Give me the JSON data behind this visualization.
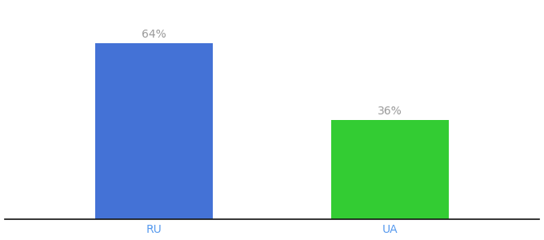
{
  "categories": [
    "RU",
    "UA"
  ],
  "values": [
    64,
    36
  ],
  "bar_colors": [
    "#4472D6",
    "#33CC33"
  ],
  "label_color": "#999999",
  "labels": [
    "64%",
    "36%"
  ],
  "background_color": "#ffffff",
  "bar_positions": [
    0.28,
    0.72
  ],
  "bar_width": 0.22,
  "xlim": [
    0.0,
    1.0
  ],
  "ylim": [
    0,
    78
  ],
  "label_fontsize": 10,
  "tick_fontsize": 10,
  "tick_color": "#5599EE",
  "spine_color": "#111111"
}
